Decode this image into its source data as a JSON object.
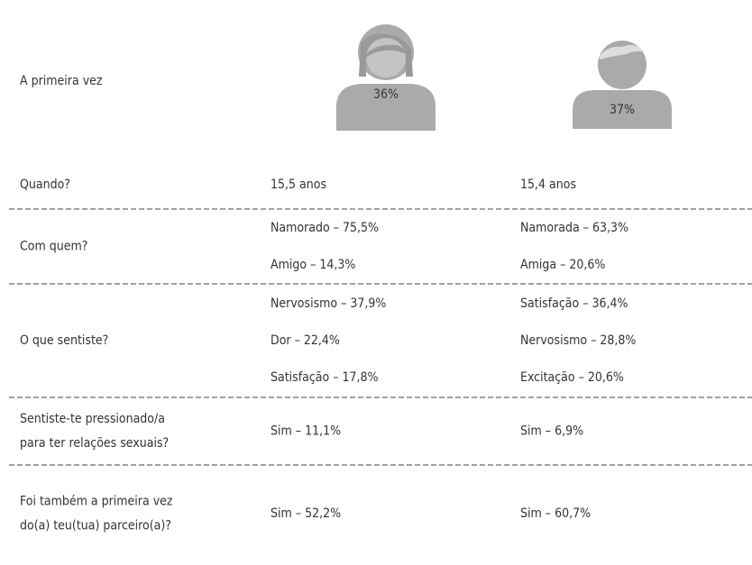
{
  "header": {
    "title": "A primeira vez",
    "female": "36%",
    "male": "37%"
  },
  "table": {
    "rows": [
      {
        "label": [
          "Quando?"
        ],
        "female": [
          "15,5 anos"
        ],
        "male": [
          "15,4 anos"
        ]
      },
      {
        "label": [
          "Com quem?"
        ],
        "female": [
          "Namorado – 75,5%",
          "Amigo – 14,3%"
        ],
        "male": [
          "Namorada – 63,3%",
          "Amiga – 20,6%"
        ]
      },
      {
        "label": [
          "O que sentiste?"
        ],
        "female": [
          "Nervosismo – 37,9%",
          "Dor – 22,4%",
          "Satisfação – 17,8%"
        ],
        "male": [
          "Satisfação – 36,4%",
          "Nervosismo – 28,8%",
          "Excitação – 20,6%"
        ]
      },
      {
        "label": [
          "Sentiste-te pressionado/a",
          "para ter relações sexuais?"
        ],
        "female": [
          "Sim – 11,1%"
        ],
        "male": [
          "Sim – 6,9%"
        ]
      },
      {
        "label": [
          "Foi também a primeira vez",
          "do(a) teu(tua) parceiro(a)?"
        ],
        "female": [
          "Sim – 52,2%"
        ],
        "male": [
          "Sim – 60,7%"
        ]
      }
    ]
  }
}
